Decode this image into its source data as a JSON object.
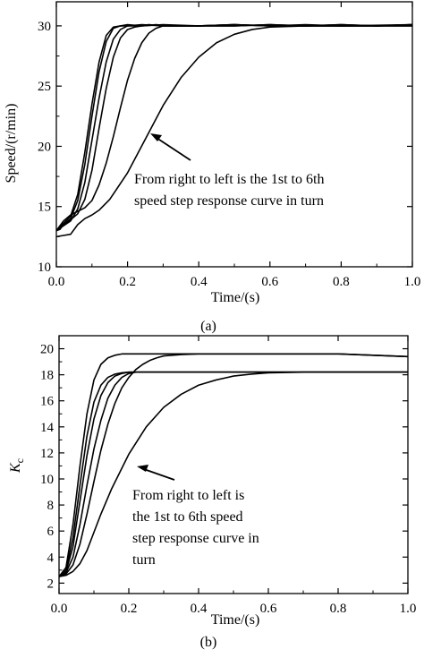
{
  "chart_data": [
    {
      "type": "line",
      "panel_label": "(a)",
      "xlabel": "Time/(s)",
      "ylabel": "Speed/(r/min)",
      "xlim": [
        0.0,
        1.0
      ],
      "ylim": [
        10,
        32
      ],
      "xticks": [
        0.0,
        0.2,
        0.4,
        0.6,
        0.8,
        1.0
      ],
      "xtick_labels": [
        "0.0",
        "0.2",
        "0.4",
        "0.6",
        "0.8",
        "1.0"
      ],
      "yticks": [
        10,
        15,
        20,
        25,
        30
      ],
      "ytick_labels": [
        "10",
        "15",
        "20",
        "25",
        "30"
      ],
      "annotation": [
        "From right to left is the 1st to 6th",
        "speed step response curve in turn"
      ],
      "series": [
        {
          "x": [
            0.0,
            0.01,
            0.02,
            0.04,
            0.06,
            0.08,
            0.1,
            0.12,
            0.14,
            0.16,
            0.18,
            0.2,
            0.24,
            0.3,
            0.4,
            0.5,
            0.6,
            0.7,
            0.8,
            0.9,
            1.0
          ],
          "y": [
            13,
            13.3,
            13.6,
            14.2,
            16,
            19.5,
            23.5,
            27,
            29.2,
            29.9,
            30.0,
            30.0,
            30.1,
            30.0,
            30.0,
            30.1,
            30.0,
            30.1,
            30.0,
            30.0,
            30.1
          ]
        },
        {
          "x": [
            0.0,
            0.01,
            0.02,
            0.04,
            0.06,
            0.08,
            0.1,
            0.12,
            0.14,
            0.16,
            0.18,
            0.2,
            0.24,
            0.3,
            0.4,
            0.5,
            0.6,
            0.7,
            0.8,
            0.9,
            1.0
          ],
          "y": [
            13,
            13.1,
            13.5,
            14.0,
            15.5,
            18.5,
            22.5,
            26.2,
            28.7,
            29.8,
            30.0,
            30.1,
            30.0,
            30.1,
            30.0,
            30.0,
            30.1,
            30.0,
            30.1,
            30.0,
            30.0
          ]
        },
        {
          "x": [
            0.0,
            0.01,
            0.02,
            0.04,
            0.06,
            0.08,
            0.1,
            0.12,
            0.14,
            0.16,
            0.18,
            0.2,
            0.22,
            0.26,
            0.3,
            0.4,
            0.5,
            0.6,
            0.7,
            0.8,
            0.9,
            1.0
          ],
          "y": [
            13,
            13.2,
            13.4,
            13.8,
            14.8,
            17.0,
            20.5,
            24.0,
            27.0,
            28.9,
            29.7,
            30.0,
            30.0,
            30.1,
            30.0,
            30.0,
            30.0,
            30.1,
            30.0,
            30.0,
            30.0,
            30.1
          ]
        },
        {
          "x": [
            0.0,
            0.02,
            0.04,
            0.06,
            0.08,
            0.1,
            0.12,
            0.14,
            0.16,
            0.18,
            0.2,
            0.22,
            0.24,
            0.28,
            0.32,
            0.4,
            0.5,
            0.6,
            0.7,
            0.8,
            0.9,
            1.0
          ],
          "y": [
            13,
            13.5,
            13.9,
            14.4,
            15.6,
            18.0,
            21.5,
            24.8,
            27.4,
            29.0,
            29.7,
            29.9,
            30.0,
            30.1,
            30.0,
            30.0,
            30.1,
            30.0,
            30.0,
            30.1,
            30.0,
            30.0
          ]
        },
        {
          "x": [
            0.0,
            0.02,
            0.04,
            0.06,
            0.08,
            0.1,
            0.12,
            0.14,
            0.16,
            0.18,
            0.2,
            0.22,
            0.24,
            0.26,
            0.28,
            0.3,
            0.34,
            0.4,
            0.5,
            0.6,
            0.8,
            1.0
          ],
          "y": [
            13,
            13.8,
            14.3,
            14.6,
            14.9,
            15.5,
            16.8,
            18.6,
            20.8,
            23.2,
            25.5,
            27.3,
            28.6,
            29.4,
            29.8,
            30.0,
            30.0,
            30.0,
            30.1,
            30.0,
            30.0,
            30.1
          ]
        },
        {
          "x": [
            0.0,
            0.02,
            0.04,
            0.06,
            0.08,
            0.1,
            0.12,
            0.15,
            0.2,
            0.25,
            0.3,
            0.35,
            0.4,
            0.45,
            0.5,
            0.55,
            0.6,
            0.7,
            0.8,
            0.9,
            1.0
          ],
          "y": [
            12.5,
            12.6,
            12.7,
            13.5,
            14.0,
            14.3,
            14.7,
            15.6,
            17.8,
            20.6,
            23.4,
            25.7,
            27.4,
            28.6,
            29.3,
            29.7,
            29.9,
            30.0,
            30.0,
            30.0,
            30.1
          ]
        }
      ]
    },
    {
      "type": "line",
      "panel_label": "(b)",
      "xlabel": "Time/(s)",
      "ylabel": "K",
      "ylabel_sub": "c",
      "xlim": [
        0.0,
        1.0
      ],
      "ylim": [
        1.2,
        21.0
      ],
      "xticks": [
        0.0,
        0.2,
        0.4,
        0.6,
        0.8,
        1.0
      ],
      "xtick_labels": [
        "0.0",
        "0.2",
        "0.4",
        "0.6",
        "0.8",
        "1.0"
      ],
      "yticks": [
        2,
        4,
        6,
        8,
        10,
        12,
        14,
        16,
        18,
        20
      ],
      "ytick_labels": [
        "2",
        "4",
        "6",
        "8",
        "10",
        "12",
        "14",
        "16",
        "18",
        "20"
      ],
      "annotation": [
        "From right to left is",
        "the 1st to 6th speed",
        "step response curve in",
        "turn"
      ],
      "series": [
        {
          "x": [
            0.0,
            0.02,
            0.04,
            0.06,
            0.08,
            0.1,
            0.12,
            0.14,
            0.16,
            0.18,
            0.2,
            0.24,
            0.3,
            0.4,
            0.5,
            0.6,
            0.7,
            0.8,
            0.9,
            1.0
          ],
          "y": [
            2.5,
            3.2,
            6.5,
            11.0,
            15.0,
            17.6,
            18.8,
            19.3,
            19.5,
            19.6,
            19.6,
            19.6,
            19.6,
            19.6,
            19.6,
            19.6,
            19.6,
            19.6,
            19.5,
            19.4
          ]
        },
        {
          "x": [
            0.0,
            0.02,
            0.04,
            0.06,
            0.08,
            0.1,
            0.12,
            0.14,
            0.16,
            0.18,
            0.2,
            0.24,
            0.3,
            0.4,
            0.5,
            0.6,
            0.7,
            0.8,
            0.9,
            1.0
          ],
          "y": [
            2.5,
            3.0,
            5.5,
            9.5,
            13.3,
            15.9,
            17.2,
            17.8,
            18.05,
            18.15,
            18.2,
            18.2,
            18.2,
            18.2,
            18.2,
            18.2,
            18.2,
            18.2,
            18.2,
            18.2
          ]
        },
        {
          "x": [
            0.0,
            0.02,
            0.04,
            0.06,
            0.08,
            0.1,
            0.12,
            0.14,
            0.16,
            0.18,
            0.2,
            0.22,
            0.26,
            0.3,
            0.4,
            0.5,
            0.6,
            0.7,
            0.8,
            0.9,
            1.0
          ],
          "y": [
            2.5,
            2.9,
            4.8,
            8.3,
            11.8,
            14.6,
            16.4,
            17.4,
            17.9,
            18.1,
            18.2,
            18.2,
            18.2,
            18.2,
            18.2,
            18.2,
            18.2,
            18.2,
            18.2,
            18.2,
            18.2
          ]
        },
        {
          "x": [
            0.0,
            0.02,
            0.04,
            0.06,
            0.08,
            0.1,
            0.12,
            0.14,
            0.16,
            0.18,
            0.2,
            0.22,
            0.24,
            0.26,
            0.3,
            0.4,
            0.5,
            0.6,
            0.7,
            0.8,
            0.9,
            1.0
          ],
          "y": [
            2.5,
            2.8,
            4.0,
            6.5,
            9.5,
            12.3,
            14.5,
            16.2,
            17.2,
            17.8,
            18.1,
            18.2,
            18.2,
            18.2,
            18.2,
            18.2,
            18.2,
            18.2,
            18.2,
            18.2,
            18.2,
            18.2
          ]
        },
        {
          "x": [
            0.0,
            0.02,
            0.04,
            0.06,
            0.08,
            0.1,
            0.12,
            0.14,
            0.16,
            0.18,
            0.2,
            0.22,
            0.24,
            0.26,
            0.28,
            0.3,
            0.35,
            0.4,
            0.5,
            0.6,
            0.7,
            0.8,
            0.9,
            1.0
          ],
          "y": [
            2.5,
            2.7,
            3.4,
            5.0,
            7.3,
            9.8,
            12.2,
            14.2,
            15.8,
            17.0,
            17.8,
            18.4,
            18.8,
            19.1,
            19.3,
            19.45,
            19.55,
            19.6,
            19.6,
            19.6,
            19.6,
            19.6,
            19.5,
            19.4
          ]
        },
        {
          "x": [
            0.0,
            0.02,
            0.04,
            0.06,
            0.08,
            0.1,
            0.12,
            0.15,
            0.2,
            0.25,
            0.3,
            0.35,
            0.4,
            0.45,
            0.5,
            0.55,
            0.6,
            0.7,
            0.8,
            0.9,
            1.0
          ],
          "y": [
            2.5,
            2.6,
            2.9,
            3.5,
            4.5,
            5.9,
            7.3,
            9.2,
            11.9,
            14.0,
            15.5,
            16.5,
            17.2,
            17.6,
            17.9,
            18.05,
            18.15,
            18.2,
            18.2,
            18.2,
            18.2
          ]
        }
      ]
    }
  ]
}
